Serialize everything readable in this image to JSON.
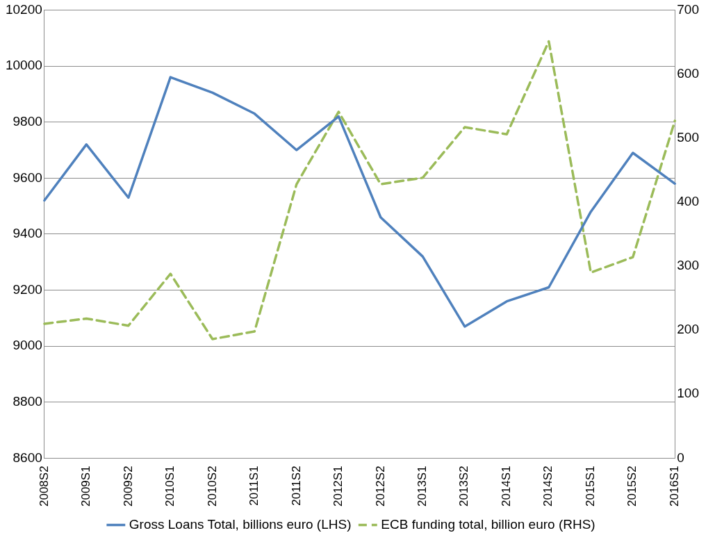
{
  "chart_data": {
    "type": "line",
    "categories": [
      "2008S2",
      "2009S1",
      "2009S2",
      "2010S1",
      "2010S2",
      "2011S1",
      "2011S2",
      "2012S1",
      "2012S2",
      "2013S1",
      "2013S2",
      "2014S1",
      "2014S2",
      "2015S1",
      "2015S2",
      "2016S1"
    ],
    "series": [
      {
        "name": "Gross Loans Total, billions euro (LHS)",
        "color": "#4f81bd",
        "line_style": "solid",
        "values": [
          9520,
          9720,
          9530,
          9960,
          9905,
          9830,
          9700,
          9820,
          9460,
          9320,
          9070,
          9160,
          9210,
          9480,
          9690,
          9580
        ]
      },
      {
        "name": "ECB funding total, billion euro (RHS)",
        "color": "#9bbb59",
        "line_style": "dashed",
        "axis": "y2",
        "values": [
          210,
          218,
          207,
          288,
          186,
          198,
          428,
          541,
          428,
          438,
          517,
          506,
          651,
          290,
          314,
          527
        ]
      }
    ],
    "ylim": [
      8600,
      10200
    ],
    "yticks": [
      8600,
      8800,
      9000,
      9200,
      9400,
      9600,
      9800,
      10000,
      10200
    ],
    "y2lim": [
      0,
      700
    ],
    "y2ticks": [
      0,
      100,
      200,
      300,
      400,
      500,
      600,
      700
    ],
    "grid": "y",
    "legend": "bottom",
    "marker": "none"
  }
}
